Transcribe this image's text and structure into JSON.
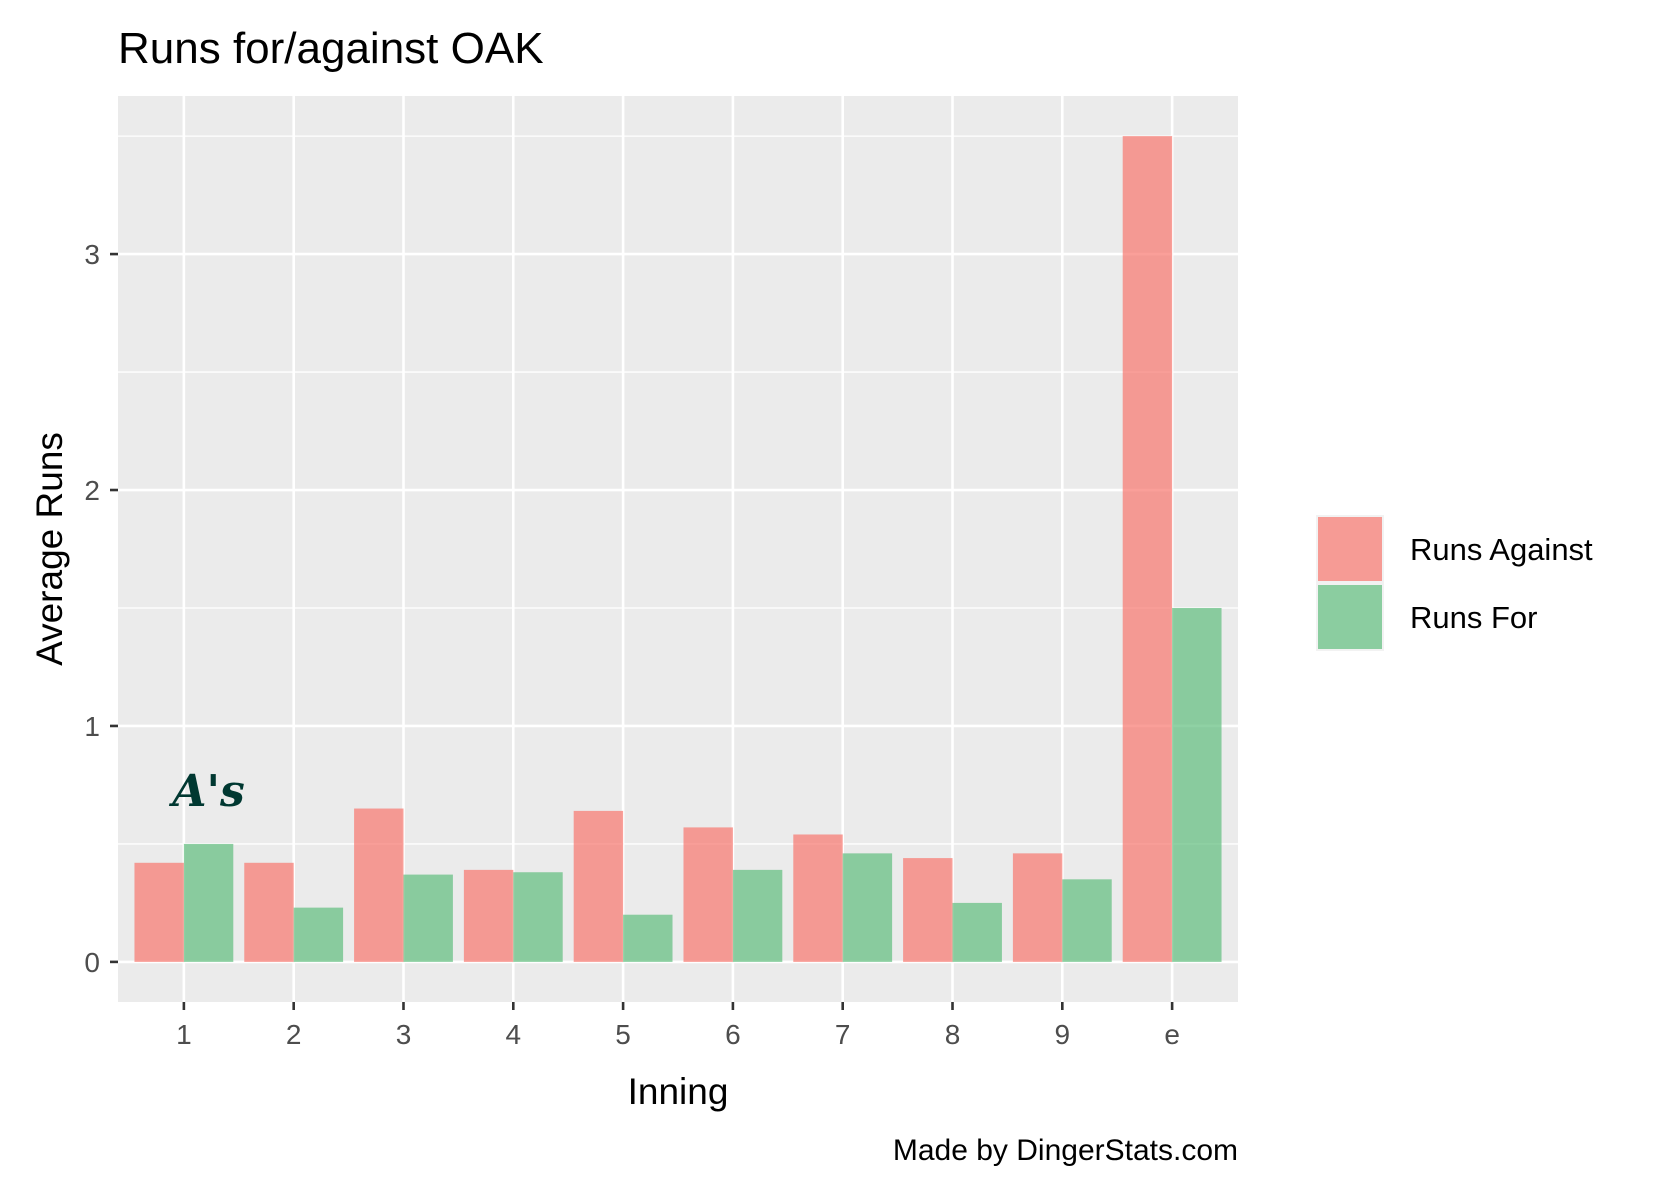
{
  "chart_data": {
    "type": "bar",
    "title": "Runs for/against OAK",
    "xlabel": "Inning",
    "ylabel": "Average Runs",
    "categories": [
      "1",
      "2",
      "3",
      "4",
      "5",
      "6",
      "7",
      "8",
      "9",
      "e"
    ],
    "series": [
      {
        "name": "Runs Against",
        "color": "#f8766d",
        "values": [
          0.42,
          0.42,
          0.65,
          0.39,
          0.64,
          0.57,
          0.54,
          0.44,
          0.46,
          3.5
        ]
      },
      {
        "name": "Runs For",
        "color": "#5fbe7d",
        "values": [
          0.5,
          0.23,
          0.37,
          0.38,
          0.2,
          0.39,
          0.46,
          0.25,
          0.35,
          1.5
        ]
      }
    ],
    "ylim": [
      -0.17,
      3.67
    ],
    "yticks": [
      0,
      1,
      2,
      3
    ],
    "grid": true,
    "legend_position": "right",
    "caption": "Made by DingerStats.com",
    "logo": {
      "text": "A's",
      "color": "#003831"
    }
  }
}
